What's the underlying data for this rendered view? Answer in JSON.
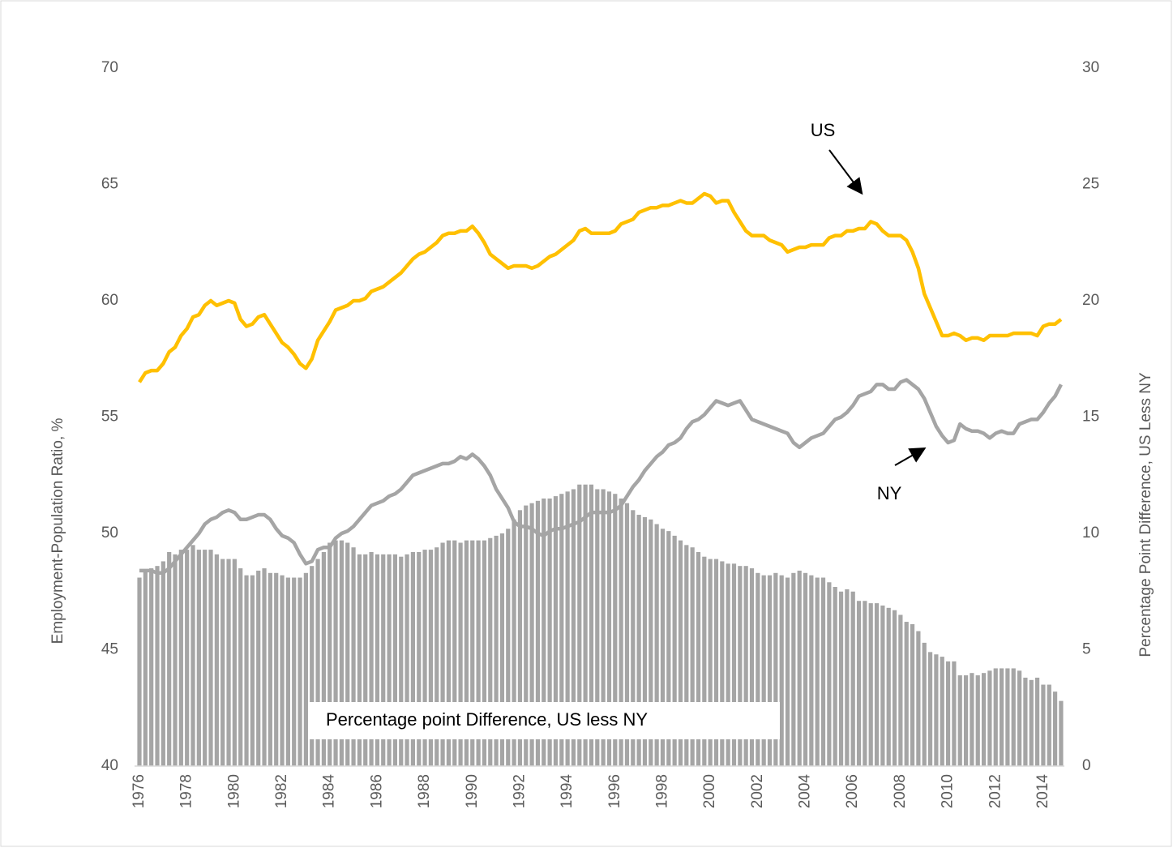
{
  "chart_data": {
    "type": "line",
    "y_label": "Employment-Population Ratio, %",
    "y2_label": "Percentage Point Difference, US Less NY",
    "ylim": [
      40,
      70
    ],
    "yticks": [
      40,
      45,
      50,
      55,
      60,
      65,
      70
    ],
    "y2lim": [
      0,
      30
    ],
    "y2ticks": [
      0,
      5,
      10,
      15,
      20,
      25,
      30
    ],
    "categories": [
      "1976",
      null,
      null,
      null,
      null,
      null,
      null,
      null,
      "1978",
      null,
      null,
      null,
      null,
      null,
      null,
      null,
      "1980",
      null,
      null,
      null,
      null,
      null,
      null,
      null,
      "1982",
      null,
      null,
      null,
      null,
      null,
      null,
      null,
      "1984",
      null,
      null,
      null,
      null,
      null,
      null,
      null,
      "1986",
      null,
      null,
      null,
      null,
      null,
      null,
      null,
      "1988",
      null,
      null,
      null,
      null,
      null,
      null,
      null,
      "1990",
      null,
      null,
      null,
      null,
      null,
      null,
      null,
      "1992",
      null,
      null,
      null,
      null,
      null,
      null,
      null,
      "1994",
      null,
      null,
      null,
      null,
      null,
      null,
      null,
      "1996",
      null,
      null,
      null,
      null,
      null,
      null,
      null,
      "1998",
      null,
      null,
      null,
      null,
      null,
      null,
      null,
      "2000",
      null,
      null,
      null,
      null,
      null,
      null,
      null,
      "2002",
      null,
      null,
      null,
      null,
      null,
      null,
      null,
      "2004",
      null,
      null,
      null,
      null,
      null,
      null,
      null,
      "2006",
      null,
      null,
      null,
      null,
      null,
      null,
      null,
      "2008",
      null,
      null,
      null,
      null,
      null,
      null,
      null,
      "2010",
      null,
      null,
      null,
      null,
      null,
      null,
      null,
      "2012",
      null,
      null,
      null,
      null,
      null,
      null,
      null,
      "2014",
      null,
      null,
      null
    ],
    "series": [
      {
        "name": "Percentage point Difference, US less NY",
        "type": "bar",
        "axis": "y2",
        "color": "#a5a5a5",
        "values": [
          8.1,
          8.4,
          8.5,
          8.6,
          8.8,
          9.2,
          9.1,
          9.3,
          9.3,
          9.5,
          9.3,
          9.3,
          9.3,
          9.1,
          8.9,
          8.9,
          8.9,
          8.5,
          8.2,
          8.2,
          8.4,
          8.5,
          8.3,
          8.3,
          8.2,
          8.1,
          8.1,
          8.1,
          8.3,
          8.6,
          8.9,
          9.2,
          9.6,
          9.7,
          9.7,
          9.6,
          9.4,
          9.1,
          9.1,
          9.2,
          9.1,
          9.1,
          9.1,
          9.1,
          9.0,
          9.1,
          9.2,
          9.2,
          9.3,
          9.3,
          9.4,
          9.6,
          9.7,
          9.7,
          9.6,
          9.7,
          9.7,
          9.7,
          9.7,
          9.8,
          9.9,
          10.0,
          10.2,
          10.6,
          11.0,
          11.2,
          11.3,
          11.4,
          11.5,
          11.5,
          11.6,
          11.7,
          11.8,
          11.9,
          12.1,
          12.1,
          12.1,
          11.9,
          11.9,
          11.8,
          11.7,
          11.5,
          11.3,
          11.0,
          10.8,
          10.7,
          10.6,
          10.4,
          10.2,
          10.1,
          9.9,
          9.7,
          9.5,
          9.4,
          9.2,
          9.0,
          8.9,
          8.9,
          8.8,
          8.7,
          8.7,
          8.6,
          8.6,
          8.5,
          8.3,
          8.2,
          8.2,
          8.3,
          8.2,
          8.1,
          8.3,
          8.4,
          8.3,
          8.2,
          8.1,
          8.1,
          7.9,
          7.7,
          7.5,
          7.6,
          7.5,
          7.1,
          7.1,
          7.0,
          7.0,
          6.9,
          6.8,
          6.7,
          6.5,
          6.2,
          6.1,
          5.8,
          5.3,
          4.9,
          4.8,
          4.7,
          4.5,
          4.5,
          3.9,
          3.9,
          4.0,
          3.9,
          4.0,
          4.1,
          4.2,
          4.2,
          4.2,
          4.2,
          4.1,
          3.8,
          3.7,
          3.8,
          3.5,
          3.5,
          3.2,
          2.8
        ]
      },
      {
        "name": "US",
        "axis": "y",
        "color": "#ffc000",
        "values": [
          56.5,
          56.9,
          57.0,
          57.0,
          57.3,
          57.8,
          58.0,
          58.5,
          58.8,
          59.3,
          59.4,
          59.8,
          60.0,
          59.8,
          59.9,
          60.0,
          59.9,
          59.2,
          58.9,
          59.0,
          59.3,
          59.4,
          59.0,
          58.6,
          58.2,
          58.0,
          57.7,
          57.3,
          57.1,
          57.5,
          58.3,
          58.7,
          59.1,
          59.6,
          59.7,
          59.8,
          60.0,
          60.0,
          60.1,
          60.4,
          60.5,
          60.6,
          60.8,
          61.0,
          61.2,
          61.5,
          61.8,
          62.0,
          62.1,
          62.3,
          62.5,
          62.8,
          62.9,
          62.9,
          63.0,
          63.0,
          63.2,
          62.9,
          62.5,
          62.0,
          61.8,
          61.6,
          61.4,
          61.5,
          61.5,
          61.5,
          61.4,
          61.5,
          61.7,
          61.9,
          62.0,
          62.2,
          62.4,
          62.6,
          63.0,
          63.1,
          62.9,
          62.9,
          62.9,
          62.9,
          63.0,
          63.3,
          63.4,
          63.5,
          63.8,
          63.9,
          64.0,
          64.0,
          64.1,
          64.1,
          64.2,
          64.3,
          64.2,
          64.2,
          64.4,
          64.6,
          64.5,
          64.2,
          64.3,
          64.3,
          63.8,
          63.4,
          63.0,
          62.8,
          62.8,
          62.8,
          62.6,
          62.5,
          62.4,
          62.1,
          62.2,
          62.3,
          62.3,
          62.4,
          62.4,
          62.4,
          62.7,
          62.8,
          62.8,
          63.0,
          63.0,
          63.1,
          63.1,
          63.4,
          63.3,
          63.0,
          62.8,
          62.8,
          62.8,
          62.6,
          62.1,
          61.4,
          60.3,
          59.7,
          59.1,
          58.5,
          58.5,
          58.6,
          58.5,
          58.3,
          58.4,
          58.4,
          58.3,
          58.5,
          58.5,
          58.5,
          58.5,
          58.6,
          58.6,
          58.6,
          58.6,
          58.5,
          58.9,
          59.0,
          59.0,
          59.2
        ]
      },
      {
        "name": "NY",
        "axis": "y",
        "color": "#a5a5a5",
        "values": [
          48.4,
          48.4,
          48.4,
          48.3,
          48.3,
          48.5,
          48.8,
          49.1,
          49.4,
          49.7,
          50.0,
          50.4,
          50.6,
          50.7,
          50.9,
          51.0,
          50.9,
          50.6,
          50.6,
          50.7,
          50.8,
          50.8,
          50.6,
          50.2,
          49.9,
          49.8,
          49.6,
          49.1,
          48.7,
          48.8,
          49.3,
          49.4,
          49.4,
          49.8,
          50.0,
          50.1,
          50.3,
          50.6,
          50.9,
          51.2,
          51.3,
          51.4,
          51.6,
          51.7,
          51.9,
          52.2,
          52.5,
          52.6,
          52.7,
          52.8,
          52.9,
          53.0,
          53.0,
          53.1,
          53.3,
          53.2,
          53.4,
          53.2,
          52.9,
          52.5,
          51.9,
          51.5,
          51.1,
          50.5,
          50.3,
          50.3,
          50.2,
          50.0,
          49.9,
          50.1,
          50.2,
          50.2,
          50.3,
          50.4,
          50.5,
          50.7,
          50.9,
          50.9,
          50.9,
          50.9,
          51.0,
          51.2,
          51.6,
          52.0,
          52.3,
          52.7,
          53.0,
          53.3,
          53.5,
          53.8,
          53.9,
          54.1,
          54.5,
          54.8,
          54.9,
          55.1,
          55.4,
          55.7,
          55.6,
          55.5,
          55.6,
          55.7,
          55.3,
          54.9,
          54.8,
          54.7,
          54.6,
          54.5,
          54.4,
          54.3,
          53.9,
          53.7,
          53.9,
          54.1,
          54.2,
          54.3,
          54.6,
          54.9,
          55.0,
          55.2,
          55.5,
          55.9,
          56.0,
          56.1,
          56.4,
          56.4,
          56.2,
          56.2,
          56.5,
          56.6,
          56.4,
          56.2,
          55.8,
          55.2,
          54.6,
          54.2,
          53.9,
          54.0,
          54.7,
          54.5,
          54.4,
          54.4,
          54.3,
          54.1,
          54.3,
          54.4,
          54.3,
          54.3,
          54.7,
          54.8,
          54.9,
          54.9,
          55.2,
          55.6,
          55.9,
          56.4
        ]
      }
    ]
  }
}
